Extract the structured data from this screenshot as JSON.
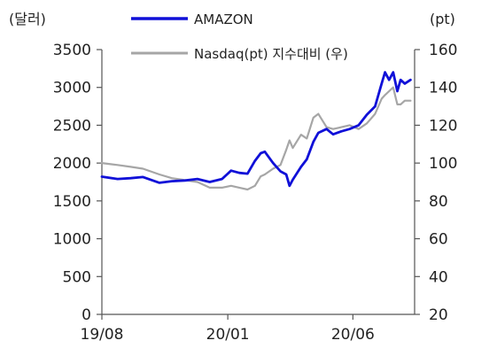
{
  "chart_data": {
    "type": "line",
    "left_axis": {
      "unit_label": "(달러)",
      "ylim": [
        0,
        3500
      ],
      "ticks": [
        0,
        500,
        1000,
        1500,
        2000,
        2500,
        3000,
        3500
      ],
      "tick_labels": [
        "0",
        "500",
        "1000",
        "1500",
        "2000",
        "2500",
        "3000",
        "3500"
      ]
    },
    "right_axis": {
      "unit_label": "(pt)",
      "ylim": [
        20,
        160
      ],
      "ticks": [
        20,
        40,
        60,
        80,
        100,
        120,
        140,
        160
      ],
      "tick_labels": [
        "20",
        "40",
        "60",
        "80",
        "100",
        "120",
        "140",
        "160"
      ]
    },
    "x_axis": {
      "tick_labels": [
        "19/08",
        "20/01",
        "20/06"
      ],
      "tick_dates": [
        "2019-08-01",
        "2020-01-01",
        "2020-06-01"
      ],
      "xlim": [
        "2019-08-01",
        "2020-08-15"
      ]
    },
    "legend_position": "top",
    "grid": false,
    "series": [
      {
        "name": "AMAZON",
        "axis": "left",
        "color": "#1010d8",
        "points": [
          [
            "2019-08-01",
            1820
          ],
          [
            "2019-08-20",
            1790
          ],
          [
            "2019-09-05",
            1800
          ],
          [
            "2019-09-20",
            1815
          ],
          [
            "2019-10-10",
            1740
          ],
          [
            "2019-10-25",
            1760
          ],
          [
            "2019-11-10",
            1770
          ],
          [
            "2019-11-25",
            1790
          ],
          [
            "2019-12-10",
            1750
          ],
          [
            "2019-12-25",
            1790
          ],
          [
            "2020-01-05",
            1900
          ],
          [
            "2020-01-15",
            1870
          ],
          [
            "2020-01-25",
            1860
          ],
          [
            "2020-02-03",
            2030
          ],
          [
            "2020-02-10",
            2130
          ],
          [
            "2020-02-15",
            2150
          ],
          [
            "2020-02-25",
            2000
          ],
          [
            "2020-03-05",
            1890
          ],
          [
            "2020-03-12",
            1850
          ],
          [
            "2020-03-16",
            1700
          ],
          [
            "2020-03-20",
            1780
          ],
          [
            "2020-03-30",
            1950
          ],
          [
            "2020-04-06",
            2050
          ],
          [
            "2020-04-14",
            2280
          ],
          [
            "2020-04-20",
            2400
          ],
          [
            "2020-04-30",
            2450
          ],
          [
            "2020-05-08",
            2380
          ],
          [
            "2020-05-18",
            2420
          ],
          [
            "2020-05-28",
            2450
          ],
          [
            "2020-06-08",
            2500
          ],
          [
            "2020-06-18",
            2640
          ],
          [
            "2020-06-28",
            2750
          ],
          [
            "2020-07-06",
            3050
          ],
          [
            "2020-07-10",
            3200
          ],
          [
            "2020-07-15",
            3100
          ],
          [
            "2020-07-20",
            3200
          ],
          [
            "2020-07-25",
            2950
          ],
          [
            "2020-07-29",
            3100
          ],
          [
            "2020-08-03",
            3050
          ],
          [
            "2020-08-10",
            3100
          ]
        ]
      },
      {
        "name": "Nasdaq(pt) 지수대비 (우)",
        "axis": "right",
        "color": "#a6a6a6",
        "points": [
          [
            "2019-08-01",
            100
          ],
          [
            "2019-08-20",
            99
          ],
          [
            "2019-09-05",
            98
          ],
          [
            "2019-09-20",
            97
          ],
          [
            "2019-10-10",
            94
          ],
          [
            "2019-10-25",
            92
          ],
          [
            "2019-11-10",
            91
          ],
          [
            "2019-11-25",
            90
          ],
          [
            "2019-12-10",
            87
          ],
          [
            "2019-12-25",
            87
          ],
          [
            "2020-01-05",
            88
          ],
          [
            "2020-01-15",
            87
          ],
          [
            "2020-01-25",
            86
          ],
          [
            "2020-02-03",
            88
          ],
          [
            "2020-02-10",
            93
          ],
          [
            "2020-02-15",
            94
          ],
          [
            "2020-02-25",
            97
          ],
          [
            "2020-03-05",
            99
          ],
          [
            "2020-03-12",
            107
          ],
          [
            "2020-03-16",
            112
          ],
          [
            "2020-03-20",
            108
          ],
          [
            "2020-03-30",
            115
          ],
          [
            "2020-04-06",
            113
          ],
          [
            "2020-04-14",
            124
          ],
          [
            "2020-04-20",
            126
          ],
          [
            "2020-04-30",
            119
          ],
          [
            "2020-05-08",
            118
          ],
          [
            "2020-05-18",
            119
          ],
          [
            "2020-05-28",
            120
          ],
          [
            "2020-06-08",
            118
          ],
          [
            "2020-06-18",
            121
          ],
          [
            "2020-06-28",
            126
          ],
          [
            "2020-07-06",
            134
          ],
          [
            "2020-07-10",
            136
          ],
          [
            "2020-07-15",
            138
          ],
          [
            "2020-07-20",
            140
          ],
          [
            "2020-07-25",
            131
          ],
          [
            "2020-07-29",
            131
          ],
          [
            "2020-08-03",
            133
          ],
          [
            "2020-08-10",
            133
          ]
        ]
      }
    ]
  }
}
